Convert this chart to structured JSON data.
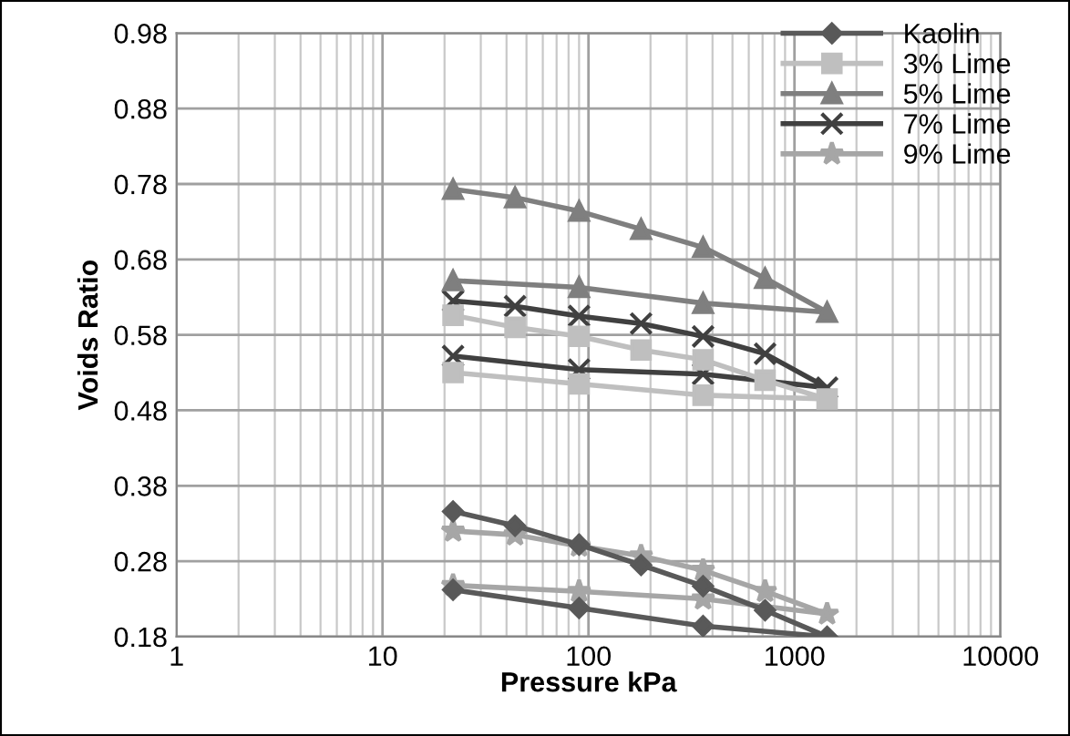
{
  "chart_data": {
    "type": "line",
    "xlabel": "Pressure kPa",
    "ylabel": "Voids Ratio",
    "log": "x",
    "xlim": [
      1,
      10000
    ],
    "xticks": [
      1,
      10,
      100,
      1000,
      10000
    ],
    "ylim": [
      0.18,
      0.98
    ],
    "yticks": [
      0.18,
      0.28,
      0.38,
      0.48,
      0.58,
      0.68,
      0.78,
      0.88,
      0.98
    ],
    "grid": true,
    "legend": "top right",
    "line_style": "solid",
    "series": [
      {
        "name": "Kaolin",
        "color": "#595959",
        "marker": "diamond",
        "x": [
          22,
          44,
          90,
          180,
          360,
          720,
          1440,
          360,
          90,
          22
        ],
        "values": [
          0.346,
          0.327,
          0.302,
          0.275,
          0.247,
          0.215,
          0.18,
          0.194,
          0.218,
          0.242
        ]
      },
      {
        "name": "3% Lime",
        "color": "#bfbfbf",
        "marker": "square",
        "x": [
          22,
          44,
          90,
          180,
          360,
          720,
          1440,
          360,
          90,
          22
        ],
        "values": [
          0.606,
          0.59,
          0.578,
          0.56,
          0.547,
          0.52,
          0.495,
          0.5,
          0.515,
          0.53
        ]
      },
      {
        "name": "5% Lime",
        "color": "#7f7f7f",
        "marker": "triangle",
        "x": [
          22,
          44,
          90,
          180,
          360,
          720,
          1440,
          360,
          90,
          22
        ],
        "values": [
          0.773,
          0.762,
          0.744,
          0.72,
          0.696,
          0.655,
          0.61,
          0.622,
          0.643,
          0.652
        ]
      },
      {
        "name": "7% Lime",
        "color": "#404040",
        "marker": "cross",
        "x": [
          22,
          44,
          90,
          180,
          360,
          720,
          1440,
          360,
          90,
          22
        ],
        "values": [
          0.625,
          0.618,
          0.605,
          0.595,
          0.578,
          0.555,
          0.51,
          0.528,
          0.534,
          0.552
        ]
      },
      {
        "name": "9% Lime",
        "color": "#a6a6a6",
        "marker": "star",
        "x": [
          22,
          44,
          90,
          180,
          360,
          720,
          1440,
          360,
          90,
          22
        ],
        "values": [
          0.32,
          0.315,
          0.3,
          0.287,
          0.268,
          0.24,
          0.21,
          0.23,
          0.24,
          0.248
        ]
      }
    ]
  }
}
